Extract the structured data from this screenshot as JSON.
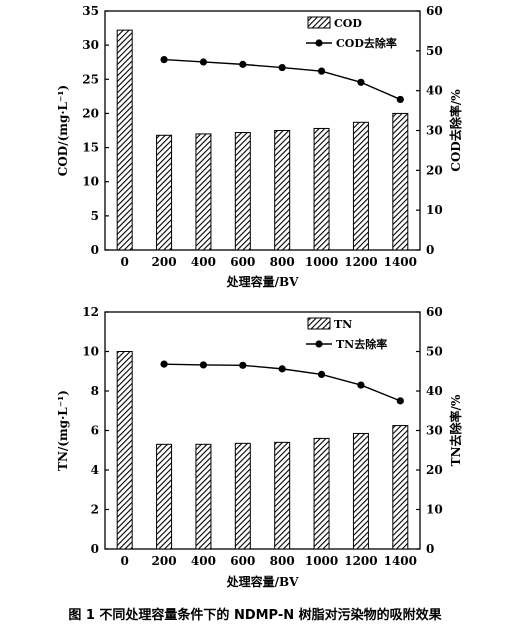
{
  "caption": "图 1   不同处理容量条件下的 NDMP-N 树脂对污染物的吸附效果",
  "chart_data": [
    {
      "type": "bar",
      "name": "cod-chart",
      "categories": [
        "0",
        "200",
        "400",
        "600",
        "800",
        "1000",
        "1200",
        "1400"
      ],
      "xlabel": "处理容量/BV",
      "ylabel": "COD/(mg·L⁻¹)",
      "y2label": "COD去除率/%",
      "ylim": [
        0,
        35
      ],
      "yticks": [
        0,
        5,
        10,
        15,
        20,
        25,
        30,
        35
      ],
      "y2lim": [
        0,
        60
      ],
      "y2ticks": [
        0,
        10,
        20,
        30,
        40,
        50,
        60
      ],
      "legend_position": "top-right",
      "grid": false,
      "series": [
        {
          "name": "COD",
          "kind": "bar",
          "axis": "left",
          "values": [
            32.2,
            16.8,
            17.0,
            17.2,
            17.5,
            17.8,
            18.7,
            20.0
          ]
        },
        {
          "name": "COD去除率",
          "kind": "line",
          "axis": "right",
          "x": [
            "200",
            "400",
            "600",
            "800",
            "1000",
            "1200",
            "1400"
          ],
          "values": [
            47.8,
            47.2,
            46.6,
            45.8,
            44.9,
            42.1,
            37.8
          ]
        }
      ]
    },
    {
      "type": "bar",
      "name": "tn-chart",
      "categories": [
        "0",
        "200",
        "400",
        "600",
        "800",
        "1000",
        "1200",
        "1400"
      ],
      "xlabel": "处理容量/BV",
      "ylabel": "TN/(mg·L⁻¹)",
      "y2label": "TN去除率/%",
      "ylim": [
        0,
        12
      ],
      "yticks": [
        0,
        2,
        4,
        6,
        8,
        10,
        12
      ],
      "y2lim": [
        0,
        60
      ],
      "y2ticks": [
        0,
        10,
        20,
        30,
        40,
        50,
        60
      ],
      "legend_position": "top-right",
      "grid": false,
      "series": [
        {
          "name": "TN",
          "kind": "bar",
          "axis": "left",
          "values": [
            10.0,
            5.3,
            5.3,
            5.35,
            5.4,
            5.6,
            5.85,
            6.25
          ]
        },
        {
          "name": "TN去除率",
          "kind": "line",
          "axis": "right",
          "x": [
            "200",
            "400",
            "600",
            "800",
            "1000",
            "1200",
            "1400"
          ],
          "values": [
            46.8,
            46.6,
            46.5,
            45.6,
            44.2,
            41.5,
            37.5
          ]
        }
      ]
    }
  ]
}
